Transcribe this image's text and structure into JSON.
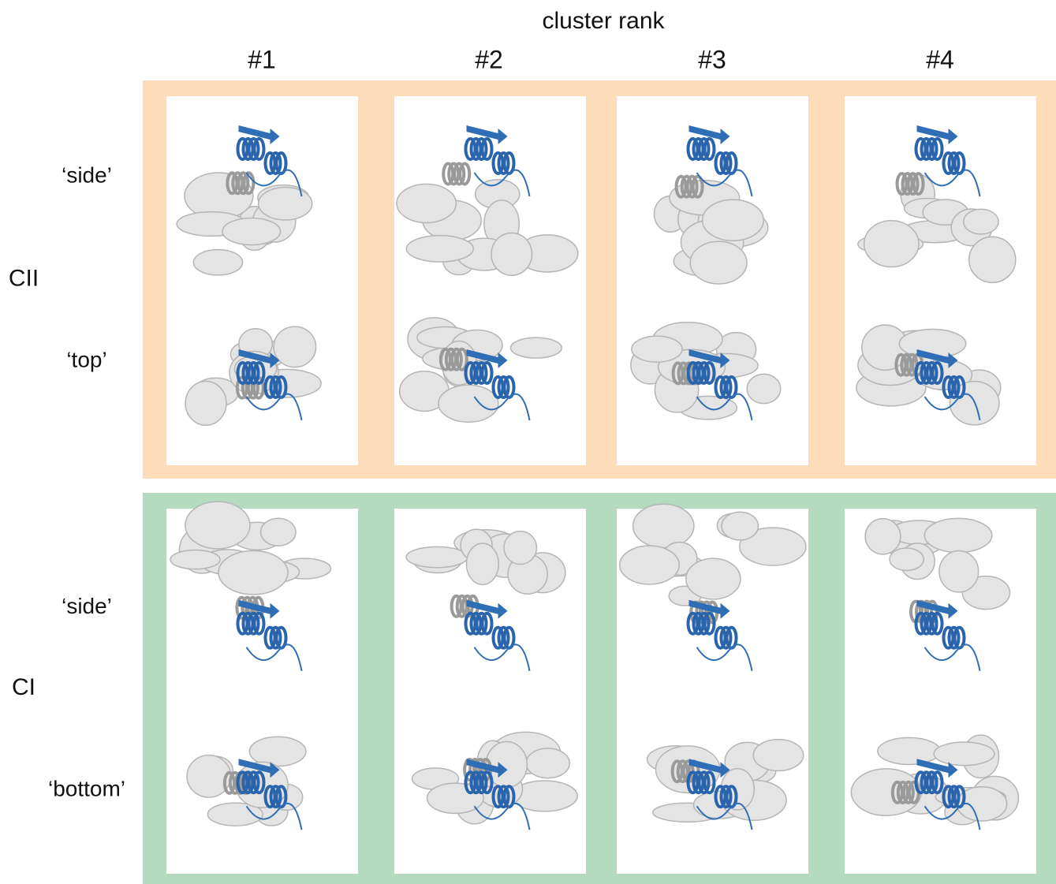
{
  "header": {
    "title": "cluster rank",
    "columns": [
      "#1",
      "#2",
      "#3",
      "#4"
    ]
  },
  "panels": [
    {
      "label": "CII",
      "views": [
        "‘side’",
        "‘top’"
      ]
    },
    {
      "label": "CI",
      "views": [
        "‘side’",
        "‘bottom’"
      ]
    }
  ]
}
